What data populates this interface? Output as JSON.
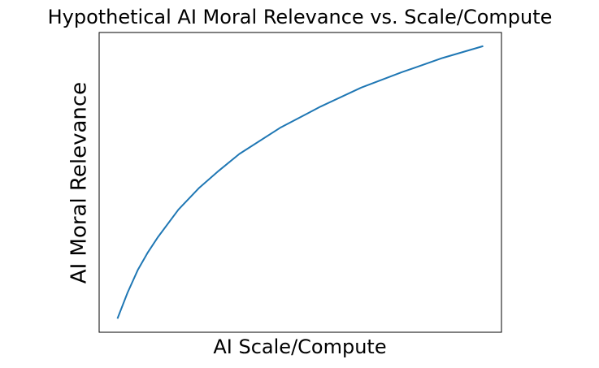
{
  "chart_data": {
    "type": "line",
    "title": "Hypothetical AI Moral Relevance vs. Scale/Compute",
    "x_label": "AI Scale/Compute",
    "y_label": "AI Moral Relevance",
    "x": [
      1,
      1.25,
      1.5,
      1.75,
      2,
      2.5,
      3,
      3.5,
      4,
      5,
      6,
      7,
      8,
      9,
      10
    ],
    "values": [
      0,
      0.22,
      0.41,
      0.56,
      0.69,
      0.92,
      1.1,
      1.25,
      1.39,
      1.61,
      1.79,
      1.95,
      2.08,
      2.2,
      2.3
    ],
    "color": "#1f77b4",
    "xlim": [
      0.55,
      10.45
    ],
    "ylim": [
      -0.115,
      2.415
    ]
  }
}
